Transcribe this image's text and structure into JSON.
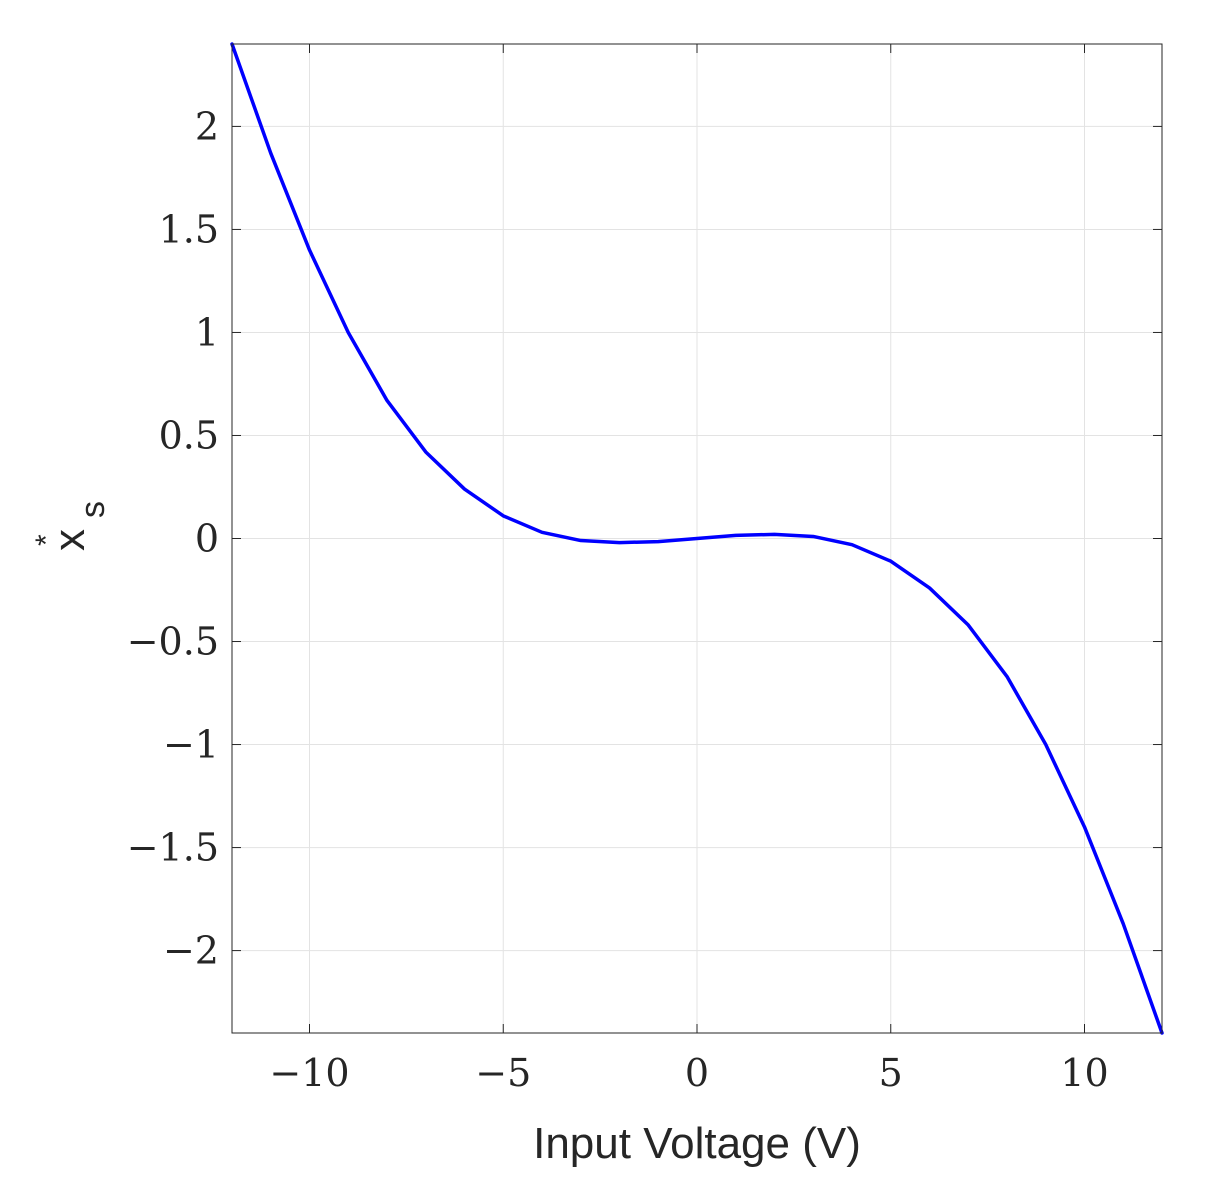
{
  "chart_data": {
    "type": "line",
    "title": "",
    "xlabel": "Input Voltage (V)",
    "ylabel_main": "x",
    "ylabel_sub": "s",
    "ylabel_sup": "*",
    "xlim": [
      -12,
      12
    ],
    "ylim": [
      -2.4,
      2.4
    ],
    "grid": true,
    "x_ticks": [
      -10,
      -5,
      0,
      5,
      10
    ],
    "x_tick_labels": [
      "−10",
      "−5",
      "0",
      "5",
      "10"
    ],
    "y_ticks": [
      2,
      1.5,
      1,
      0.5,
      0,
      -0.5,
      -1,
      -1.5,
      -2
    ],
    "y_tick_labels": [
      "2",
      "1.5",
      "1",
      "0.5",
      "0",
      "−0.5",
      "−1",
      "−1.5",
      "−2"
    ],
    "series": [
      {
        "color": "#0000ff",
        "x": [
          -12,
          -11,
          -10,
          -9,
          -8,
          -7,
          -6,
          -5,
          -4,
          -3,
          -2,
          -1,
          0,
          1,
          2,
          3,
          4,
          5,
          6,
          7,
          8,
          9,
          10,
          11,
          12
        ],
        "y": [
          2.4,
          1.87,
          1.4,
          1.0,
          0.67,
          0.42,
          0.24,
          0.11,
          0.03,
          -0.01,
          -0.02,
          -0.015,
          0.0,
          0.015,
          0.02,
          0.01,
          -0.03,
          -0.11,
          -0.24,
          -0.42,
          -0.67,
          -1.0,
          -1.4,
          -1.87,
          -2.4
        ]
      }
    ]
  }
}
